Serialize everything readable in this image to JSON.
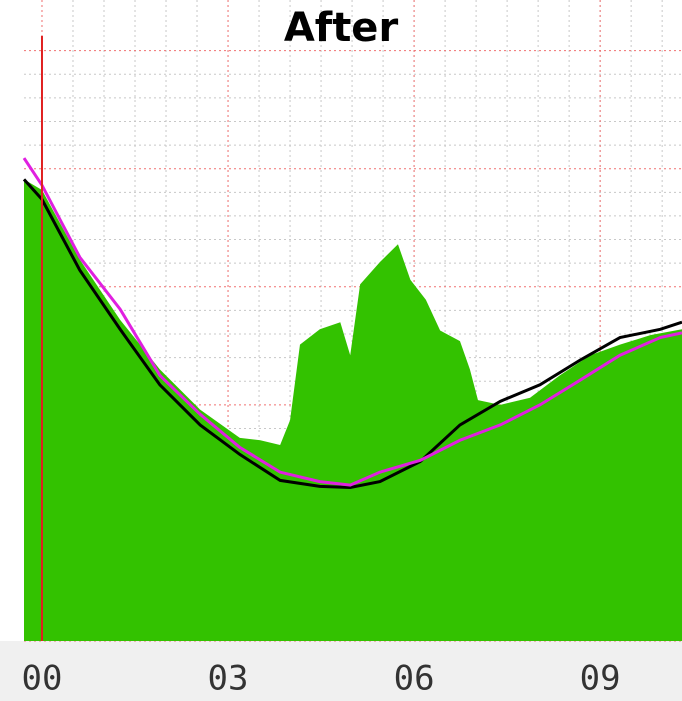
{
  "chart_data": {
    "type": "area",
    "title": "After",
    "xlim": [
      -0.29,
      10.32
    ],
    "xticks": [
      {
        "value": 0,
        "label": "00"
      },
      {
        "value": 3,
        "label": "03"
      },
      {
        "value": 6,
        "label": "06"
      },
      {
        "value": 9,
        "label": "09"
      }
    ],
    "ylim": [
      0,
      5.09
    ],
    "yticks": [
      0,
      1,
      2,
      3,
      4,
      5
    ],
    "grid": true,
    "vline": 0,
    "vline_color": "#e02020",
    "series": [
      {
        "color": "#33c200",
        "fill": true,
        "x": [
          -0.29,
          0,
          0.61,
          1.26,
          1.9,
          2.55,
          3.19,
          3.52,
          3.84,
          4.0,
          4.16,
          4.48,
          4.81,
          4.97,
          5.13,
          5.45,
          5.74,
          5.94,
          6.19,
          6.42,
          6.74,
          6.9,
          7.03,
          7.39,
          7.87,
          8.35,
          8.84,
          9.32,
          9.81,
          10.32
        ],
        "values": [
          3.91,
          3.82,
          3.23,
          2.72,
          2.3,
          1.96,
          1.72,
          1.7,
          1.66,
          1.87,
          2.51,
          2.64,
          2.7,
          2.42,
          3.02,
          3.21,
          3.36,
          3.06,
          2.89,
          2.63,
          2.54,
          2.3,
          2.04,
          2.0,
          2.06,
          2.25,
          2.42,
          2.51,
          2.59,
          2.64
        ]
      },
      {
        "color": "#000000",
        "fill": false,
        "x": [
          -0.29,
          0,
          0.61,
          1.26,
          1.9,
          2.55,
          3.19,
          3.84,
          4.48,
          4.97,
          5.45,
          6.1,
          6.74,
          7.39,
          8.03,
          8.68,
          9.32,
          9.97,
          10.32
        ],
        "values": [
          3.91,
          3.74,
          3.14,
          2.64,
          2.17,
          1.83,
          1.58,
          1.36,
          1.31,
          1.3,
          1.35,
          1.52,
          1.83,
          2.03,
          2.17,
          2.38,
          2.57,
          2.64,
          2.7
        ]
      },
      {
        "color": "#e020e0",
        "fill": false,
        "x": [
          -0.29,
          0,
          0.61,
          1.26,
          1.9,
          2.55,
          3.19,
          3.84,
          4.48,
          4.97,
          5.45,
          6.1,
          6.74,
          7.39,
          8.03,
          8.68,
          9.32,
          9.97,
          10.32
        ],
        "values": [
          4.09,
          3.86,
          3.25,
          2.81,
          2.25,
          1.92,
          1.64,
          1.43,
          1.35,
          1.32,
          1.43,
          1.53,
          1.7,
          1.83,
          2.0,
          2.21,
          2.42,
          2.57,
          2.61
        ]
      }
    ]
  }
}
